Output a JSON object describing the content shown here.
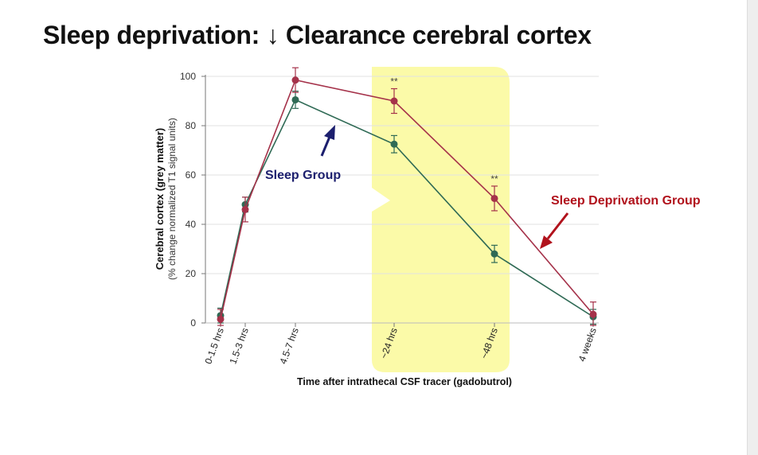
{
  "slide": {
    "title": "Sleep deprivation: ↓ Clearance cerebral cortex"
  },
  "colors": {
    "sleep_group": "#2f6a55",
    "sleep_deprivation_group": "#a5324a",
    "highlight": "#fbfaa8",
    "sleep_arrow": "#1c1f6e",
    "sd_arrow": "#b1121c"
  },
  "annotations": {
    "sleep_group_label": "Sleep Group",
    "sleep_deprivation_label": "Sleep Deprivation Group",
    "sleep_arrow_icon": "arrow-up-right",
    "sd_arrow_icon": "arrow-down-left"
  },
  "chart_data": {
    "type": "line",
    "title": "",
    "categories": [
      "0-1.5 hrs",
      "1.5-3 hrs",
      "4.5-7 hrs",
      "~24 hrs",
      "~48 hrs",
      "4 weeks"
    ],
    "xlabel": "Time after intrathecal CSF tracer (gadobutrol)",
    "ylabel": "Cerebral cortex (grey matter)",
    "ylabel_sub": "(% change normalized T1 signal units)",
    "ylim": [
      0,
      100
    ],
    "yticks": [
      0,
      20,
      40,
      60,
      80,
      100
    ],
    "grid": true,
    "legend": "none",
    "highlight_categories": [
      "~24 hrs",
      "~48 hrs"
    ],
    "significance": [
      {
        "category": "~24 hrs",
        "label": "**"
      },
      {
        "category": "~48 hrs",
        "label": "**"
      }
    ],
    "series": [
      {
        "name": "Sleep Group",
        "values": [
          3,
          48,
          90.5,
          72.5,
          28,
          2.5
        ],
        "errors": [
          3,
          3,
          3.5,
          3.5,
          3.5,
          3
        ]
      },
      {
        "name": "Sleep Deprivation Group",
        "values": [
          1.5,
          46,
          98.5,
          90,
          50.5,
          3.5
        ],
        "errors": [
          4,
          5,
          5,
          5,
          5,
          5
        ]
      }
    ]
  }
}
